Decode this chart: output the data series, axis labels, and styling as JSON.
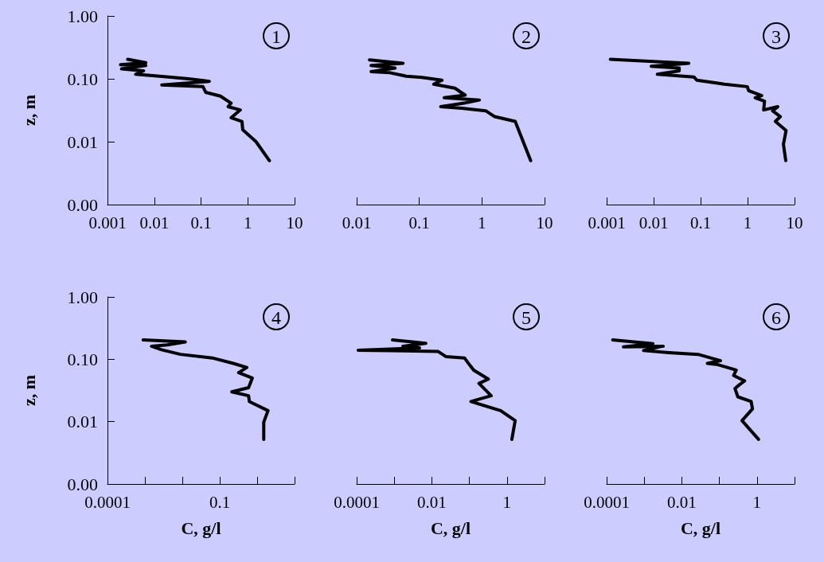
{
  "chart_data": [
    {
      "type": "line",
      "annotations": [
        "1"
      ],
      "ylabel": "z, m",
      "log": "xy",
      "xlim": [
        0.001,
        10
      ],
      "xticks": [
        0.001,
        0.01,
        0.1,
        1,
        10
      ],
      "ylim": [
        0.001,
        1
      ],
      "yticks": [
        {
          "value": 0.001,
          "label": "0.00"
        },
        {
          "value": 0.01,
          "label": "0.01"
        },
        {
          "value": 0.1,
          "label": "0.10"
        },
        {
          "value": 1,
          "label": "1.00"
        }
      ],
      "grid": false,
      "marker": "none",
      "line_style": "solid",
      "series": [
        {
          "color": "#000000",
          "x": [
            2.9,
            1.5,
            0.78,
            0.75,
            0.44,
            0.69,
            0.38,
            0.44,
            0.26,
            0.126,
            0.11,
            0.0145,
            0.15,
            0.054,
            0.013,
            0.004,
            0.0059,
            0.002,
            0.0066,
            0.0019,
            0.0066,
            0.0027
          ],
          "values": [
            0.005,
            0.01,
            0.0155,
            0.021,
            0.024,
            0.032,
            0.036,
            0.041,
            0.053,
            0.061,
            0.075,
            0.08,
            0.091,
            0.1,
            0.11,
            0.118,
            0.134,
            0.144,
            0.163,
            0.168,
            0.18,
            0.204
          ]
        }
      ]
    },
    {
      "type": "line",
      "annotations": [
        "2"
      ],
      "log": "xy",
      "tick_labels": "x",
      "xlim": [
        0.01,
        10
      ],
      "xticks": [
        0.01,
        0.1,
        1,
        10
      ],
      "ylim": [
        0.001,
        1
      ],
      "grid": false,
      "marker": "none",
      "line_style": "solid",
      "series": [
        {
          "color": "#000000",
          "x": [
            6.0,
            3.4,
            1.6,
            1.15,
            0.48,
            0.22,
            0.52,
            0.91,
            0.25,
            0.54,
            0.37,
            0.17,
            0.23,
            0.11,
            0.062,
            0.034,
            0.017,
            0.041,
            0.017,
            0.055,
            0.016
          ],
          "values": [
            0.005,
            0.021,
            0.025,
            0.031,
            0.034,
            0.036,
            0.041,
            0.046,
            0.05,
            0.055,
            0.071,
            0.082,
            0.095,
            0.105,
            0.11,
            0.125,
            0.13,
            0.148,
            0.163,
            0.176,
            0.2
          ]
        }
      ]
    },
    {
      "type": "line",
      "annotations": [
        "3"
      ],
      "log": "xy",
      "tick_labels": "x",
      "xlim": [
        0.001,
        10
      ],
      "xticks": [
        0.001,
        0.01,
        0.1,
        1,
        10
      ],
      "ylim": [
        0.001,
        1
      ],
      "grid": false,
      "marker": "none",
      "line_style": "solid",
      "series": [
        {
          "color": "#000000",
          "x": [
            6.5,
            5.8,
            6.6,
            3.9,
            5.0,
            3.4,
            4.4,
            2.2,
            2.3,
            1.45,
            2.0,
            1.05,
            0.99,
            0.32,
            0.19,
            0.083,
            0.072,
            0.012,
            0.035,
            0.035,
            0.0089,
            0.056,
            0.0012
          ],
          "values": [
            0.005,
            0.0091,
            0.015,
            0.021,
            0.025,
            0.031,
            0.036,
            0.032,
            0.044,
            0.05,
            0.054,
            0.065,
            0.075,
            0.082,
            0.087,
            0.095,
            0.107,
            0.118,
            0.134,
            0.148,
            0.158,
            0.176,
            0.204
          ]
        }
      ]
    },
    {
      "type": "line",
      "annotations": [
        "4"
      ],
      "xlabel": "C, g/l",
      "ylabel": "z, m",
      "log": "xy",
      "xlim": [
        0.0001,
        10
      ],
      "xticks": [
        0.0001,
        {
          "value": 0.001,
          "label": null
        },
        {
          "value": 0.01,
          "label": null
        },
        0.1,
        {
          "value": 1,
          "label": null
        },
        {
          "value": 10,
          "label": null
        }
      ],
      "ylim": [
        0.001,
        1
      ],
      "yticks": [
        {
          "value": 0.001,
          "label": "0.00"
        },
        {
          "value": 0.01,
          "label": "0.01"
        },
        {
          "value": 0.1,
          "label": "0.10"
        },
        {
          "value": 1,
          "label": "1.00"
        }
      ],
      "grid": false,
      "marker": "none",
      "line_style": "solid",
      "series": [
        {
          "color": "#000000",
          "x": [
            1.5,
            1.5,
            1.95,
            0.62,
            0.59,
            0.21,
            0.59,
            0.74,
            0.32,
            0.53,
            0.23,
            0.063,
            0.0089,
            0.0028,
            0.0015,
            0.004,
            0.012,
            0.0009
          ],
          "values": [
            0.0052,
            0.0098,
            0.015,
            0.021,
            0.026,
            0.03,
            0.035,
            0.05,
            0.061,
            0.074,
            0.086,
            0.105,
            0.12,
            0.142,
            0.162,
            0.17,
            0.19,
            0.204
          ]
        }
      ]
    },
    {
      "type": "line",
      "annotations": [
        "5"
      ],
      "xlabel": "C, g/l",
      "log": "xy",
      "tick_labels": "x",
      "xlim": [
        0.0001,
        10
      ],
      "xticks": [
        0.0001,
        {
          "value": 0.001,
          "label": null
        },
        0.01,
        {
          "value": 0.1,
          "label": null
        },
        1,
        {
          "value": 10,
          "label": null
        }
      ],
      "ylim": [
        0.001,
        1
      ],
      "grid": false,
      "marker": "none",
      "line_style": "solid",
      "series": [
        {
          "color": "#000000",
          "x": [
            1.35,
            1.65,
            0.68,
            0.11,
            0.38,
            0.18,
            0.32,
            0.13,
            0.1,
            0.074,
            0.024,
            0.0145,
            0.00011,
            0.0047,
            0.0017,
            0.0069,
            0.0009
          ],
          "values": [
            0.0052,
            0.0104,
            0.015,
            0.021,
            0.026,
            0.041,
            0.048,
            0.067,
            0.082,
            0.105,
            0.11,
            0.134,
            0.14,
            0.152,
            0.162,
            0.18,
            0.204
          ]
        }
      ]
    },
    {
      "type": "line",
      "annotations": [
        "6"
      ],
      "xlabel": "C, g/l",
      "log": "xy",
      "tick_labels": "x",
      "xlim": [
        0.0001,
        10
      ],
      "xticks": [
        0.0001,
        {
          "value": 0.001,
          "label": null
        },
        0.01,
        {
          "value": 0.1,
          "label": null
        },
        1,
        {
          "value": 10,
          "label": null
        }
      ],
      "ylim": [
        0.001,
        1
      ],
      "grid": false,
      "marker": "none",
      "line_style": "solid",
      "series": [
        {
          "color": "#000000",
          "x": [
            1.1,
            0.4,
            0.76,
            0.7,
            0.31,
            0.26,
            0.34,
            0.47,
            0.24,
            0.28,
            0.091,
            0.048,
            0.107,
            0.027,
            0.0045,
            0.00096,
            0.0032,
            0.00028,
            0.0017,
            0.000145
          ],
          "values": [
            0.0052,
            0.0104,
            0.016,
            0.021,
            0.025,
            0.034,
            0.039,
            0.045,
            0.055,
            0.067,
            0.082,
            0.086,
            0.095,
            0.12,
            0.128,
            0.138,
            0.162,
            0.158,
            0.178,
            0.204
          ]
        }
      ]
    }
  ]
}
